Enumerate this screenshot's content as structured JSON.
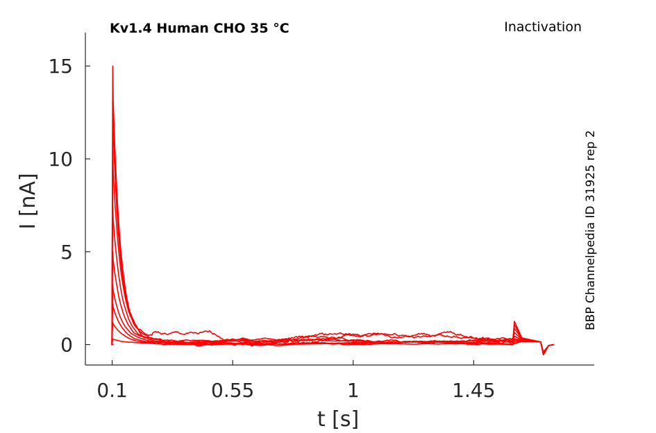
{
  "chart_data": {
    "type": "line",
    "title": "Kv1.4  Human  CHO  35 °C",
    "subtitle": "Inactivation",
    "side_label": "BBP Channelpedia ID 31925 rep 2",
    "xlabel": "t [s]",
    "ylabel": "I [nA]",
    "xlim": [
      -0.0,
      1.9
    ],
    "ylim": [
      -1.1,
      16.8
    ],
    "x_ticks": [
      0.1,
      0.55,
      1,
      1.45
    ],
    "x_tick_labels": [
      "0.1",
      "0.55",
      "1",
      "1.45"
    ],
    "y_ticks": [
      0,
      5,
      10,
      15
    ],
    "y_tick_labels": [
      "0",
      "5",
      "10",
      "15"
    ],
    "grid": false,
    "line_color": "#ff0000",
    "series": [
      {
        "peak": 15.0,
        "plateau": 0.35,
        "tau": 0.028,
        "noise": 0.2,
        "seed": 1
      },
      {
        "peak": 13.0,
        "plateau": 0.3,
        "tau": 0.03,
        "noise": 0.18,
        "seed": 2
      },
      {
        "peak": 10.5,
        "plateau": 0.25,
        "tau": 0.032,
        "noise": 0.12,
        "seed": 3
      },
      {
        "peak": 7.5,
        "plateau": 0.2,
        "tau": 0.034,
        "noise": 0.1,
        "seed": 4
      },
      {
        "peak": 5.0,
        "plateau": 0.15,
        "tau": 0.036,
        "noise": 0.08,
        "seed": 5
      },
      {
        "peak": 3.2,
        "plateau": 0.12,
        "tau": 0.038,
        "noise": 0.06,
        "seed": 6
      },
      {
        "peak": 2.2,
        "plateau": 0.1,
        "tau": 0.04,
        "noise": 0.05,
        "seed": 7
      },
      {
        "peak": 1.2,
        "plateau": 0.06,
        "tau": 0.045,
        "noise": 0.03,
        "seed": 8
      },
      {
        "peak": 0.3,
        "plateau": 0.03,
        "tau": 0.06,
        "noise": 0.02,
        "seed": 9
      }
    ]
  }
}
